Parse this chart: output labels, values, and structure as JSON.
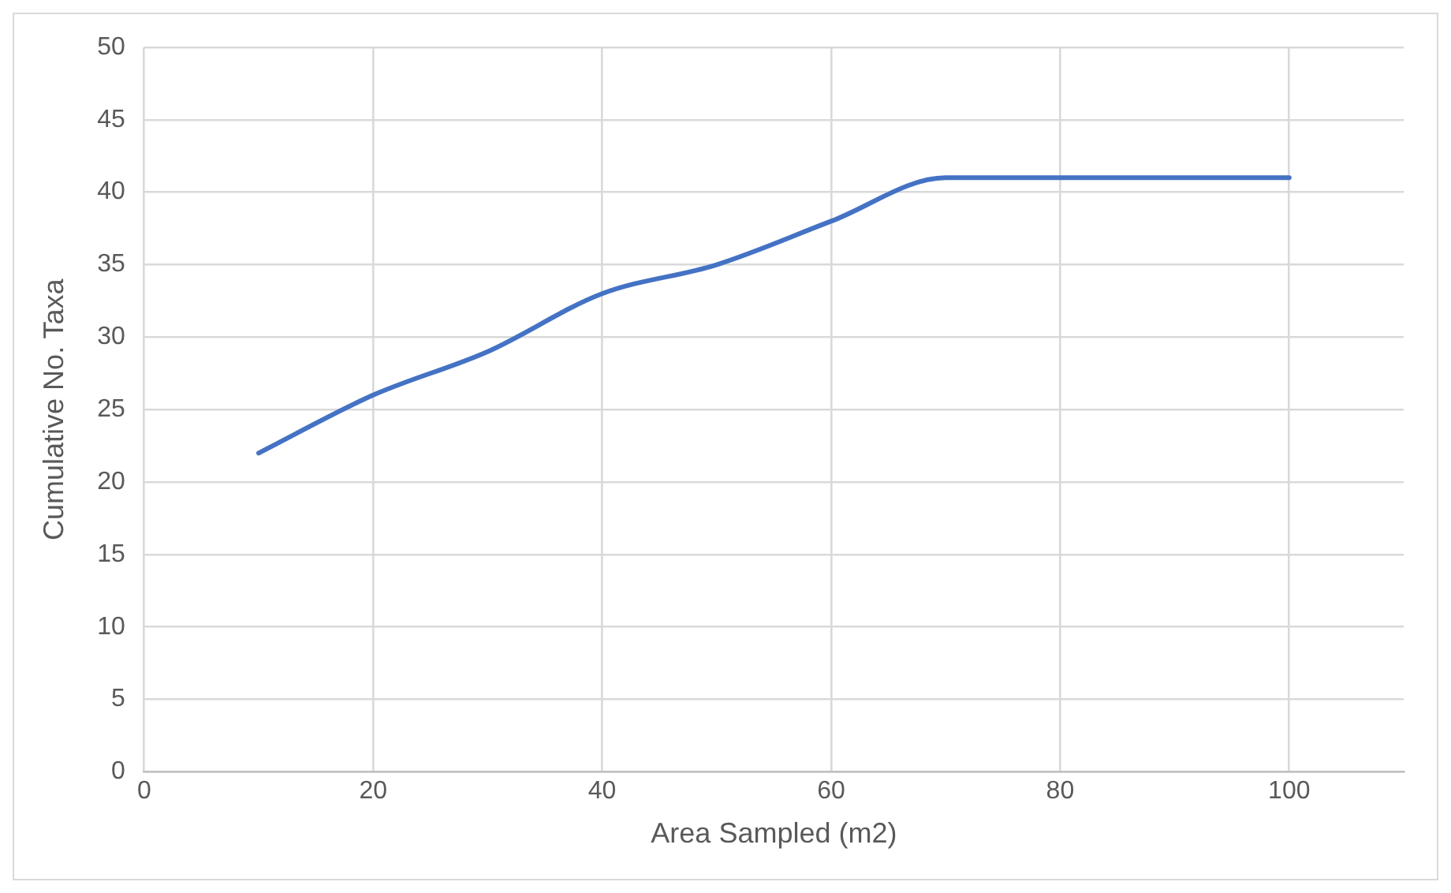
{
  "chart_data": {
    "type": "line",
    "xlabel": "Area Sampled (m2)",
    "ylabel": "Cumulative No. Taxa",
    "x": [
      10,
      20,
      30,
      40,
      50,
      60,
      70,
      80,
      90,
      100
    ],
    "series": [
      {
        "color": "#4472c4",
        "values": [
          22,
          26,
          29,
          33,
          35,
          38,
          41,
          41,
          41,
          41
        ]
      }
    ],
    "xlim": [
      0,
      110
    ],
    "xticks": [
      0,
      20,
      40,
      60,
      80,
      100
    ],
    "ylim": [
      0,
      50
    ],
    "yticks": [
      0,
      5,
      10,
      15,
      20,
      25,
      30,
      35,
      40,
      45,
      50
    ],
    "grid": true,
    "legend": false,
    "marker": "none",
    "line_style": "solid"
  }
}
